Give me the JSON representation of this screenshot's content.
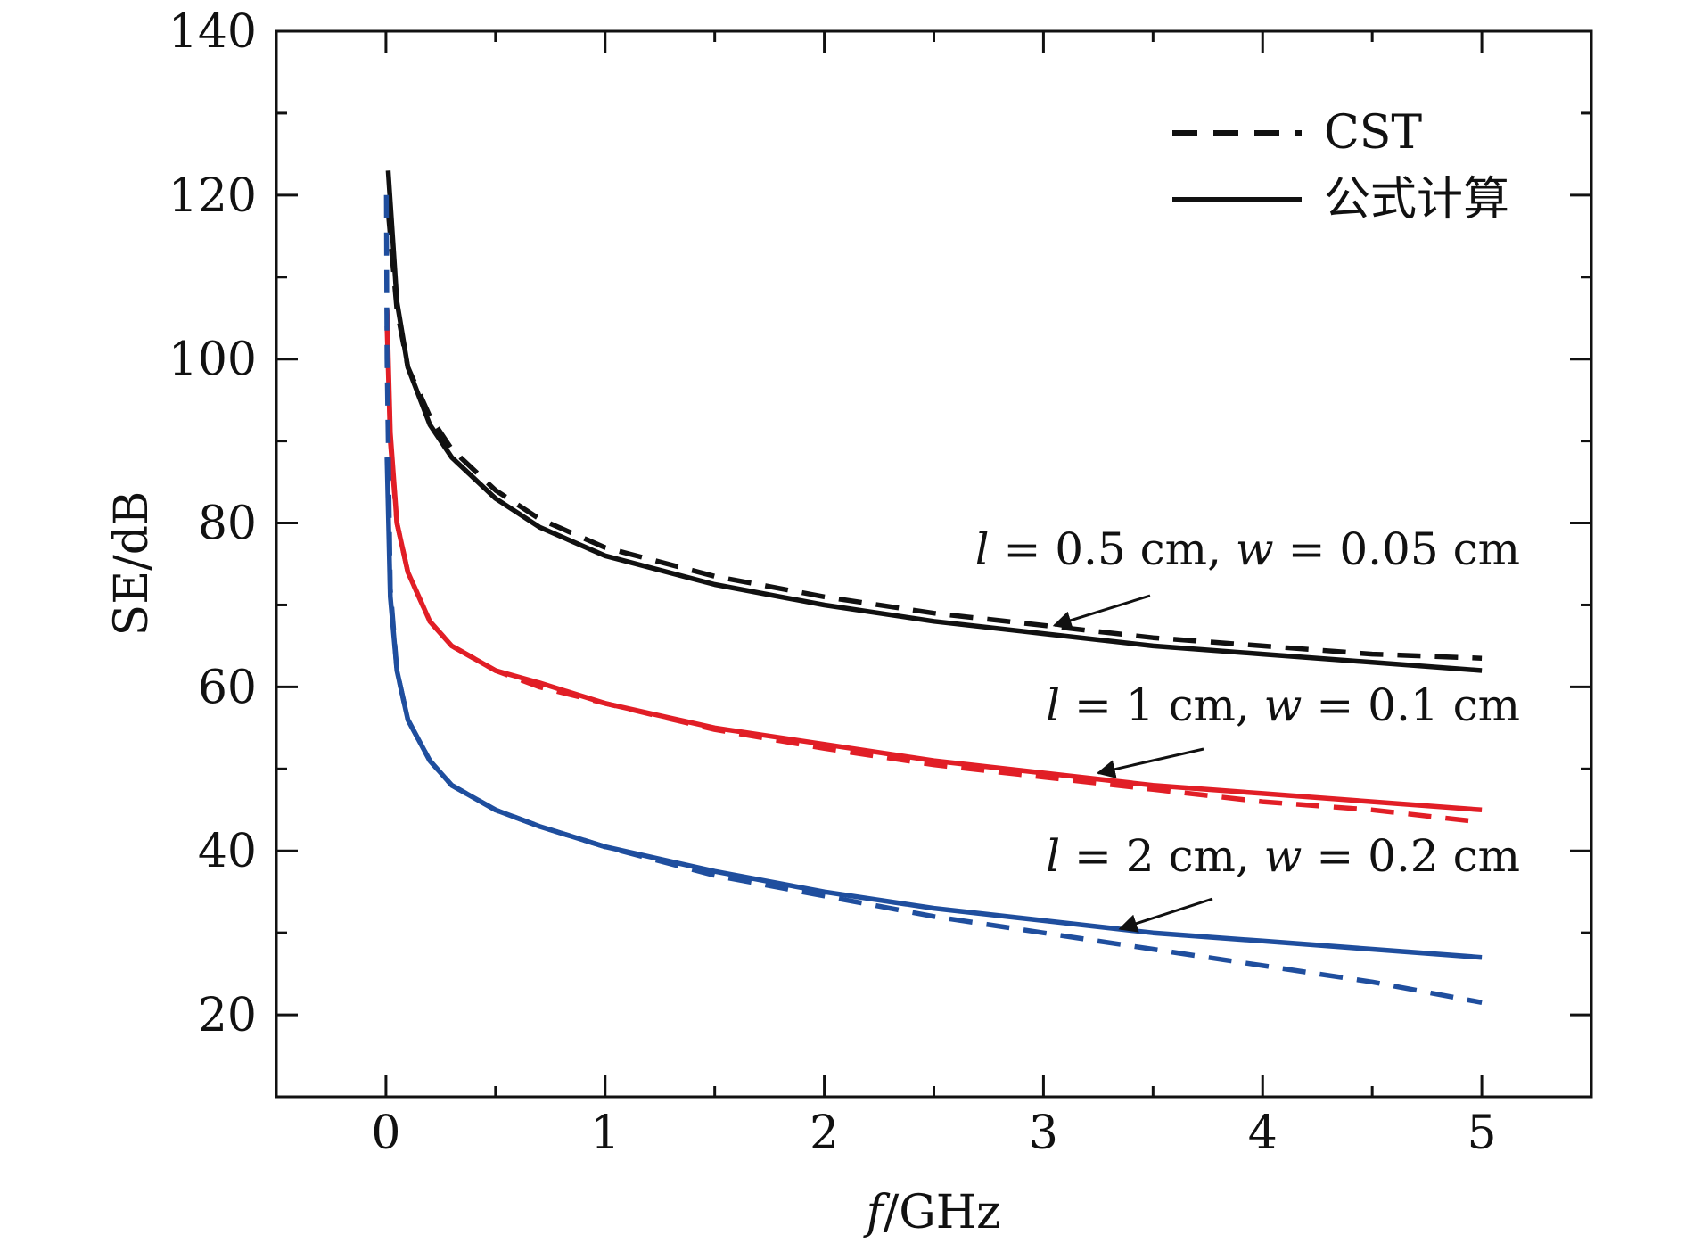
{
  "chart_data": {
    "type": "line",
    "title": "",
    "xlabel_italic": "f",
    "xlabel_rest": "/GHz",
    "ylabel": "SE/dB",
    "xlim": [
      -0.5,
      5.5
    ],
    "ylim": [
      10,
      140
    ],
    "x_ticks": [
      0,
      1,
      2,
      3,
      4,
      5
    ],
    "x_tick_labels": [
      "0",
      "1",
      "2",
      "3",
      "4",
      "5"
    ],
    "y_ticks": [
      20,
      40,
      60,
      80,
      100,
      120,
      140
    ],
    "y_tick_labels": [
      "20",
      "40",
      "60",
      "80",
      "100",
      "120",
      "140"
    ],
    "grid": false,
    "legend": {
      "position": "top-right",
      "entries": [
        {
          "label": "CST",
          "style": "dashed"
        },
        {
          "label": "公式计算",
          "style": "solid"
        }
      ]
    },
    "series": [
      {
        "name": "l = 0.5 cm, w = 0.05 cm",
        "method": "公式计算",
        "color": "#111111",
        "style": "solid",
        "x": [
          0.01,
          0.05,
          0.1,
          0.2,
          0.3,
          0.5,
          0.7,
          1.0,
          1.5,
          2.0,
          2.5,
          3.0,
          3.5,
          4.0,
          4.5,
          5.0
        ],
        "y": [
          123,
          107,
          99,
          92,
          88,
          83,
          79.5,
          76,
          72.5,
          70,
          68,
          66.5,
          65,
          64,
          63,
          62
        ]
      },
      {
        "name": "l = 0.5 cm, w = 0.05 cm",
        "method": "CST",
        "color": "#111111",
        "style": "dashed",
        "x": [
          0.01,
          0.05,
          0.1,
          0.2,
          0.3,
          0.5,
          0.7,
          1.0,
          1.5,
          2.0,
          2.5,
          3.0,
          3.5,
          4.0,
          4.5,
          5.0
        ],
        "y": [
          118,
          106,
          99,
          93,
          89,
          84,
          80.5,
          77,
          73.5,
          71,
          69,
          67.5,
          66,
          65,
          64,
          63.5
        ]
      },
      {
        "name": "l = 1 cm, w = 0.1 cm",
        "method": "公式计算",
        "color": "#e11e26",
        "style": "solid",
        "x": [
          0.005,
          0.02,
          0.05,
          0.1,
          0.2,
          0.3,
          0.5,
          0.7,
          1.0,
          1.5,
          2.0,
          2.5,
          3.0,
          3.5,
          4.0,
          4.5,
          5.0
        ],
        "y": [
          106,
          91,
          80,
          74,
          68,
          65,
          62,
          60.5,
          58,
          55,
          53,
          51,
          49.5,
          48,
          47,
          46,
          45
        ]
      },
      {
        "name": "l = 1 cm, w = 0.1 cm",
        "method": "CST",
        "color": "#e11e26",
        "style": "dashed",
        "x": [
          0.005,
          0.02,
          0.05,
          0.1,
          0.2,
          0.3,
          0.5,
          0.7,
          1.0,
          1.5,
          2.0,
          2.5,
          3.0,
          3.5,
          4.0,
          4.5,
          5.0
        ],
        "y": [
          104,
          90,
          80,
          74,
          68,
          65,
          62,
          60,
          58,
          54.8,
          52.5,
          50.5,
          49,
          47.5,
          46,
          45,
          43.5
        ]
      },
      {
        "name": "l = 2 cm, w = 0.2 cm",
        "method": "公式计算",
        "color": "#1f4e9e",
        "style": "solid",
        "x": [
          0.005,
          0.02,
          0.05,
          0.1,
          0.2,
          0.3,
          0.5,
          0.7,
          1.0,
          1.5,
          2.0,
          2.5,
          3.0,
          3.5,
          4.0,
          4.5,
          5.0
        ],
        "y": [
          88,
          71,
          62,
          56,
          51,
          48,
          45,
          43,
          40.5,
          37.5,
          35,
          33,
          31.5,
          30,
          29,
          28,
          27
        ]
      },
      {
        "name": "l = 2 cm, w = 0.2 cm",
        "method": "CST",
        "color": "#1f4e9e",
        "style": "dashed",
        "x": [
          0.002,
          0.005,
          0.02,
          0.05,
          0.1,
          0.2,
          0.3,
          0.5,
          0.7,
          1.0,
          1.5,
          2.0,
          2.5,
          3.0,
          3.5,
          4.0,
          4.5,
          5.0
        ],
        "y": [
          120,
          100,
          72,
          62,
          56,
          51,
          48,
          45,
          43,
          40.5,
          37,
          34.5,
          32,
          30,
          28,
          26,
          24,
          21.5
        ]
      }
    ],
    "annotations": [
      {
        "italic1": "l",
        "text1": " = 0.5 cm, ",
        "italic2": "w",
        "text2": " = 0.05 cm",
        "arrow_to": [
          3.05,
          67.5
        ],
        "series": "black"
      },
      {
        "italic1": "l",
        "text1": " = 1 cm, ",
        "italic2": "w",
        "text2": " = 0.1 cm",
        "arrow_to": [
          3.25,
          49.5
        ],
        "series": "red"
      },
      {
        "italic1": "l",
        "text1": " = 2 cm, ",
        "italic2": "w",
        "text2": " = 0.2 cm",
        "arrow_to": [
          3.35,
          30.5
        ],
        "series": "blue"
      }
    ]
  }
}
